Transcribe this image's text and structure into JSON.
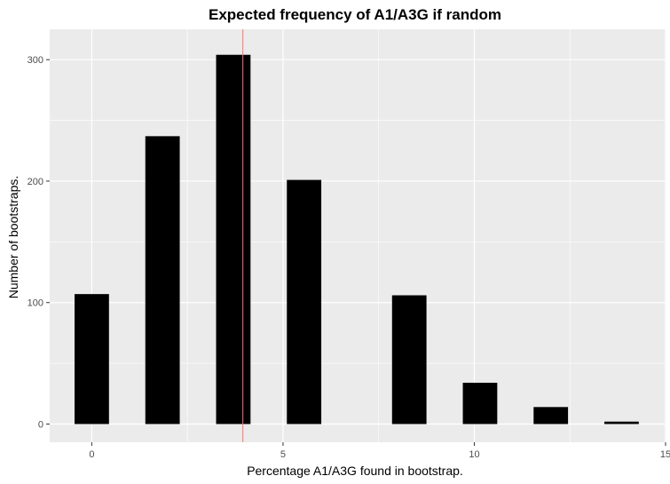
{
  "chart_data": {
    "type": "bar",
    "title": "Expected frequency of A1/A3G if random",
    "xlabel": "Percentage A1/A3G found in bootstrap.",
    "ylabel": "Number of bootstraps.",
    "x": [
      0,
      1.85,
      3.7,
      5.55,
      8.3,
      10.15,
      12,
      13.85
    ],
    "values": [
      107,
      237,
      304,
      201,
      106,
      34,
      14,
      2
    ],
    "bar_width": 0.9,
    "xlim": [
      -1.1,
      15
    ],
    "ylim": [
      -15,
      325
    ],
    "x_ticks": [
      0,
      5,
      10,
      15
    ],
    "y_ticks": [
      0,
      100,
      200,
      300
    ],
    "x_minor_ticks": [
      2.5,
      7.5,
      12.5
    ],
    "y_minor_ticks": [
      50,
      150,
      250
    ],
    "vline": {
      "x": 3.95,
      "color": "#f8766d"
    },
    "panel_background": "#ebebeb",
    "grid_color": "#ffffff",
    "bar_color": "#000000",
    "grid": true,
    "legend": "none"
  }
}
